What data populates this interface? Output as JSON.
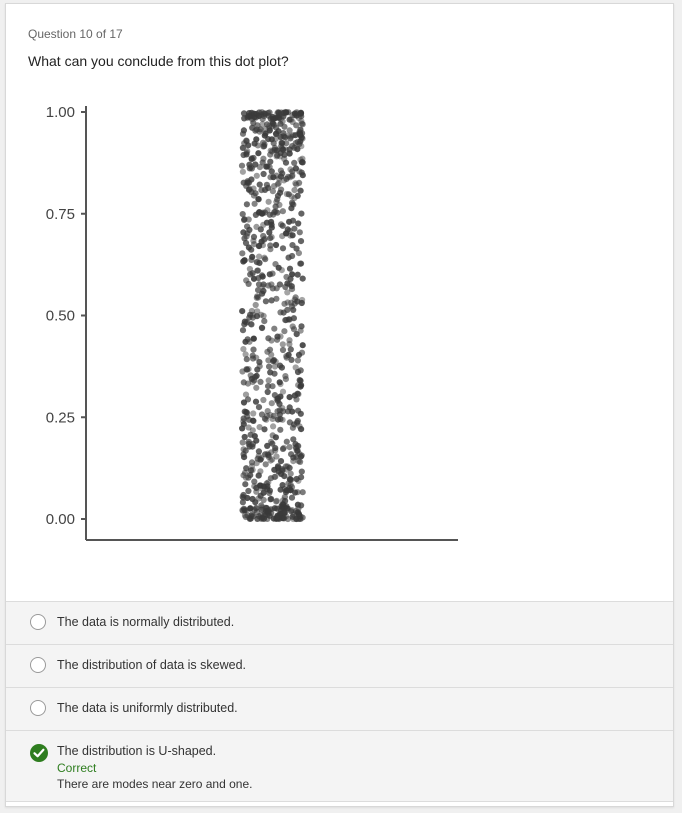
{
  "question": {
    "number_text": "Question 10 of 17",
    "prompt": "What can you conclude from this dot plot?"
  },
  "chart_data": {
    "type": "scatter",
    "description_kind": "jitter dot plot, single column",
    "yticks": [
      "1.00",
      "0.75",
      "0.50",
      "0.25",
      "0.00"
    ],
    "ytick_values": [
      1.0,
      0.75,
      0.5,
      0.25,
      0.0
    ],
    "ylim": [
      0.0,
      1.0
    ],
    "xlabel": "",
    "ylabel": "",
    "distribution": "U-shaped, dense near 0 and 1",
    "density_bins": {
      "edges": [
        0.0,
        0.1,
        0.2,
        0.3,
        0.4,
        0.5,
        0.6,
        0.7,
        0.8,
        0.9,
        1.0
      ],
      "relative_counts": [
        2.2,
        1.2,
        0.9,
        0.8,
        0.75,
        0.75,
        0.8,
        0.9,
        1.2,
        2.2
      ]
    },
    "point_color": "#3a3a3a"
  },
  "options": [
    {
      "label": "The data is normally distributed.",
      "state": "unselected"
    },
    {
      "label": "The distribution of data is skewed.",
      "state": "unselected"
    },
    {
      "label": "The data is uniformly distributed.",
      "state": "unselected"
    },
    {
      "label": "The distribution is U-shaped.",
      "state": "correct",
      "result": "Correct",
      "feedback": "There are modes near zero and one."
    }
  ],
  "colors": {
    "correct": "#2e7d1f",
    "option_bg": "#f4f4f4",
    "card_bg": "#ffffff"
  }
}
